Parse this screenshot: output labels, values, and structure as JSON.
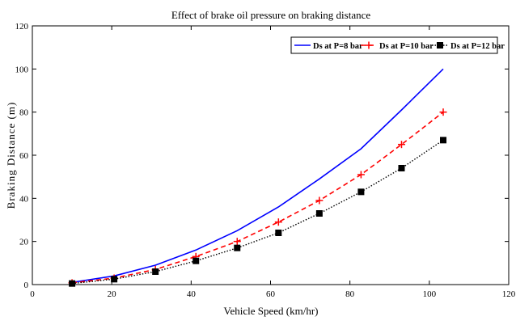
{
  "chart_data": {
    "type": "line",
    "title": "Effect of brake oil pressure on braking distance",
    "xlabel": "Vehicle Speed (km/hr)",
    "ylabel": "Braking Distance (m)",
    "xlim": [
      0,
      120
    ],
    "ylim": [
      0,
      120
    ],
    "xticks": [
      0,
      20,
      40,
      60,
      80,
      100,
      120
    ],
    "yticks": [
      0,
      20,
      40,
      60,
      80,
      100,
      120
    ],
    "grid": false,
    "legend_position": "top-right",
    "x": [
      10,
      20.6,
      31,
      41.2,
      51.6,
      62,
      72.3,
      82.8,
      93,
      103.5
    ],
    "series": [
      {
        "name": "Ds at P=8 bar",
        "color": "#0000ff",
        "style": "solid",
        "marker": "none",
        "values": [
          1,
          4,
          9,
          16,
          25,
          36,
          49,
          63,
          81,
          100
        ]
      },
      {
        "name": "Ds at P=10 bar",
        "color": "#ff0000",
        "style": "dashed",
        "marker": "plus",
        "values": [
          0.8,
          3,
          7,
          13,
          20,
          29,
          39,
          51,
          65,
          80
        ]
      },
      {
        "name": "Ds at P=12 bar",
        "color": "#000000",
        "style": "dotted",
        "marker": "square",
        "values": [
          0.5,
          2.5,
          6,
          11,
          17,
          24,
          33,
          43,
          54,
          67
        ]
      }
    ]
  }
}
